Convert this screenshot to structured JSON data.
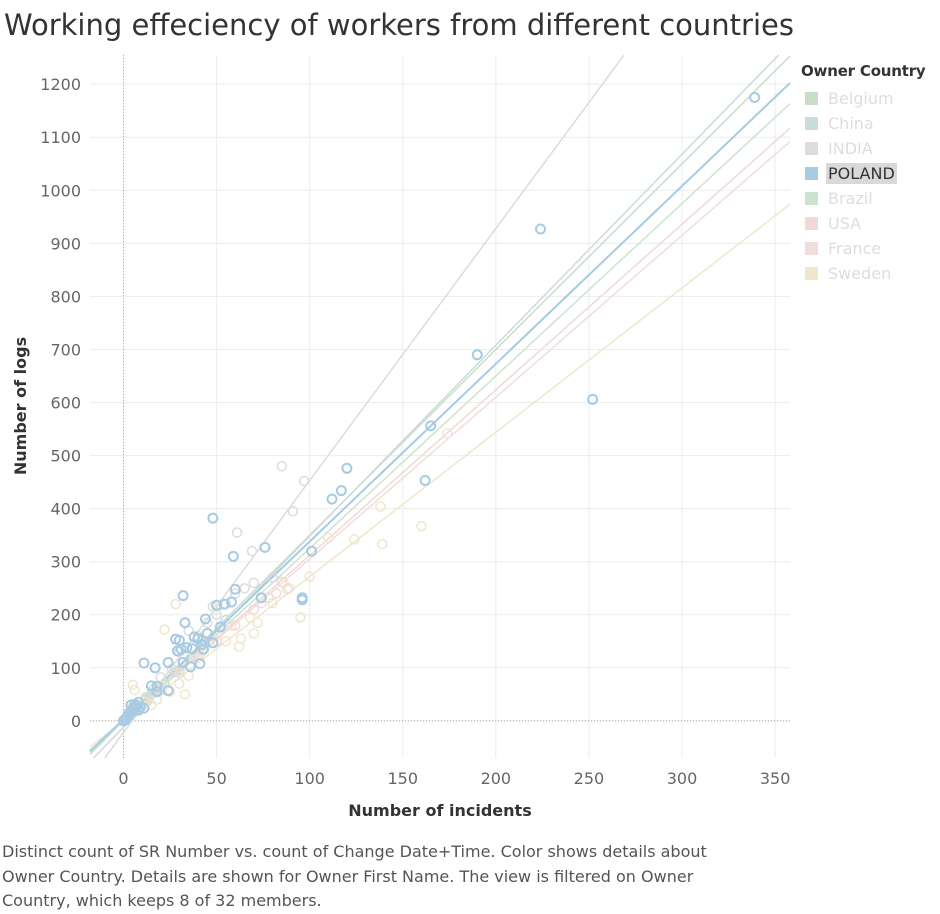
{
  "chart_data": {
    "type": "scatter",
    "title": "Working effeciency of workers from different countries",
    "xlabel": "Number of incidents",
    "ylabel": "Number of logs",
    "xlim": [
      -18,
      358
    ],
    "ylim": [
      -70,
      1255
    ],
    "x_ticks": [
      0,
      50,
      100,
      150,
      200,
      250,
      300,
      350
    ],
    "y_ticks": [
      0,
      100,
      200,
      300,
      400,
      500,
      600,
      700,
      800,
      900,
      1000,
      1100,
      1200
    ],
    "grid": true,
    "legend_position": "right",
    "legend_title": "Owner Country",
    "highlighted_series": "POLAND",
    "series": [
      {
        "name": "Belgium",
        "color": "#c9dec9",
        "trend_slope": 3.5,
        "trend_intercept": 0,
        "points": [
          [
            3,
            10
          ],
          [
            6,
            18
          ],
          [
            9,
            27
          ],
          [
            12,
            40
          ],
          [
            15,
            52
          ],
          [
            18,
            60
          ]
        ]
      },
      {
        "name": "China",
        "color": "#c9dcdc",
        "trend_slope": 3.6,
        "trend_intercept": -12,
        "points": [
          [
            4,
            14
          ],
          [
            8,
            22
          ],
          [
            14,
            45
          ],
          [
            20,
            58
          ],
          [
            28,
            92
          ],
          [
            36,
            118
          ],
          [
            42,
            150
          ],
          [
            55,
            190
          ]
        ]
      },
      {
        "name": "INDIA",
        "color": "#dcdcdc",
        "trend_slope": 4.75,
        "trend_intercept": -22,
        "points": [
          [
            85,
            480
          ],
          [
            97,
            452
          ],
          [
            91,
            395
          ],
          [
            69,
            320
          ],
          [
            61,
            355
          ],
          [
            48,
            215
          ],
          [
            55,
            220
          ],
          [
            40,
            160
          ],
          [
            35,
            170
          ],
          [
            30,
            130
          ],
          [
            26,
            98
          ],
          [
            20,
            82
          ],
          [
            16,
            60
          ],
          [
            12,
            44
          ],
          [
            8,
            30
          ],
          [
            5,
            20
          ],
          [
            50,
            200
          ],
          [
            60,
            240
          ],
          [
            65,
            250
          ],
          [
            70,
            260
          ],
          [
            80,
            270
          ],
          [
            45,
            185
          ]
        ]
      },
      {
        "name": "POLAND",
        "color": "#a6cbe3",
        "trend_slope": 3.35,
        "trend_intercept": 3,
        "points": [
          [
            339,
            1175
          ],
          [
            224,
            927
          ],
          [
            190,
            690
          ],
          [
            252,
            606
          ],
          [
            165,
            556
          ],
          [
            162,
            453
          ],
          [
            120,
            476
          ],
          [
            117,
            434
          ],
          [
            112,
            418
          ],
          [
            101,
            320
          ],
          [
            96,
            232
          ],
          [
            96,
            228
          ],
          [
            76,
            327
          ],
          [
            74,
            232
          ],
          [
            59,
            310
          ],
          [
            60,
            248
          ],
          [
            58,
            224
          ],
          [
            54,
            220
          ],
          [
            50,
            218
          ],
          [
            52,
            177
          ],
          [
            48,
            382
          ],
          [
            48,
            147
          ],
          [
            45,
            165
          ],
          [
            44,
            192
          ],
          [
            43,
            135
          ],
          [
            42,
            144
          ],
          [
            41,
            108
          ],
          [
            40,
            155
          ],
          [
            38,
            158
          ],
          [
            37,
            136
          ],
          [
            36,
            102
          ],
          [
            34,
            138
          ],
          [
            33,
            185
          ],
          [
            32,
            236
          ],
          [
            32,
            110
          ],
          [
            31,
            135
          ],
          [
            30,
            152
          ],
          [
            29,
            132
          ],
          [
            28,
            154
          ],
          [
            24,
            110
          ],
          [
            24,
            57
          ],
          [
            18,
            55
          ],
          [
            18,
            65
          ],
          [
            17,
            100
          ],
          [
            15,
            66
          ],
          [
            11,
            109
          ],
          [
            11,
            24
          ],
          [
            9,
            26
          ],
          [
            8,
            21
          ],
          [
            8,
            35
          ],
          [
            7,
            28
          ],
          [
            6,
            31
          ],
          [
            5,
            24
          ],
          [
            5,
            18
          ],
          [
            4,
            30
          ],
          [
            3,
            15
          ],
          [
            3,
            10
          ],
          [
            2,
            7
          ],
          [
            1,
            4
          ],
          [
            1,
            2
          ],
          [
            0,
            0
          ]
        ]
      },
      {
        "name": "Brazil",
        "color": "#cde3cd",
        "trend_slope": 3.25,
        "trend_intercept": 0,
        "points": [
          [
            5,
            15
          ],
          [
            9,
            25
          ],
          [
            13,
            38
          ],
          [
            18,
            55
          ],
          [
            22,
            70
          ],
          [
            30,
            96
          ]
        ]
      },
      {
        "name": "USA",
        "color": "#f2d8d8",
        "trend_slope": 3.12,
        "trend_intercept": 0,
        "points": [
          [
            10,
            28
          ],
          [
            20,
            58
          ],
          [
            30,
            90
          ],
          [
            40,
            120
          ],
          [
            50,
            150
          ],
          [
            60,
            180
          ],
          [
            70,
            210
          ]
        ]
      },
      {
        "name": "France",
        "color": "#f2dcdc",
        "trend_slope": 3.05,
        "trend_intercept": 0,
        "points": [
          [
            85,
            262
          ],
          [
            88,
            248
          ],
          [
            82,
            240
          ],
          [
            78,
            232
          ],
          [
            74,
            222
          ]
        ]
      },
      {
        "name": "Sweden",
        "color": "#efe6cc",
        "trend_slope": 2.72,
        "trend_intercept": 0,
        "points": [
          [
            174,
            542
          ],
          [
            160,
            367
          ],
          [
            138,
            404
          ],
          [
            139,
            333
          ],
          [
            124,
            342
          ],
          [
            110,
            345
          ],
          [
            100,
            272
          ],
          [
            95,
            195
          ],
          [
            89,
            250
          ],
          [
            86,
            260
          ],
          [
            80,
            222
          ],
          [
            72,
            185
          ],
          [
            70,
            165
          ],
          [
            68,
            195
          ],
          [
            62,
            140
          ],
          [
            63,
            155
          ],
          [
            58,
            180
          ],
          [
            55,
            150
          ],
          [
            50,
            210
          ],
          [
            45,
            150
          ],
          [
            42,
            130
          ],
          [
            38,
            120
          ],
          [
            35,
            85
          ],
          [
            33,
            50
          ],
          [
            30,
            70
          ],
          [
            28,
            220
          ],
          [
            25,
            55
          ],
          [
            22,
            172
          ],
          [
            21,
            66
          ],
          [
            18,
            40
          ],
          [
            15,
            30
          ],
          [
            12,
            35
          ],
          [
            10,
            30
          ],
          [
            8,
            18
          ],
          [
            6,
            58
          ],
          [
            5,
            68
          ],
          [
            4,
            12
          ],
          [
            3,
            8
          ]
        ]
      }
    ]
  },
  "caption": "Distinct count of SR Number vs. count of Change Date+Time.  Color shows details about Owner Country.  Details are shown for Owner First Name. The view is filtered on Owner Country, which keeps 8 of 32 members."
}
